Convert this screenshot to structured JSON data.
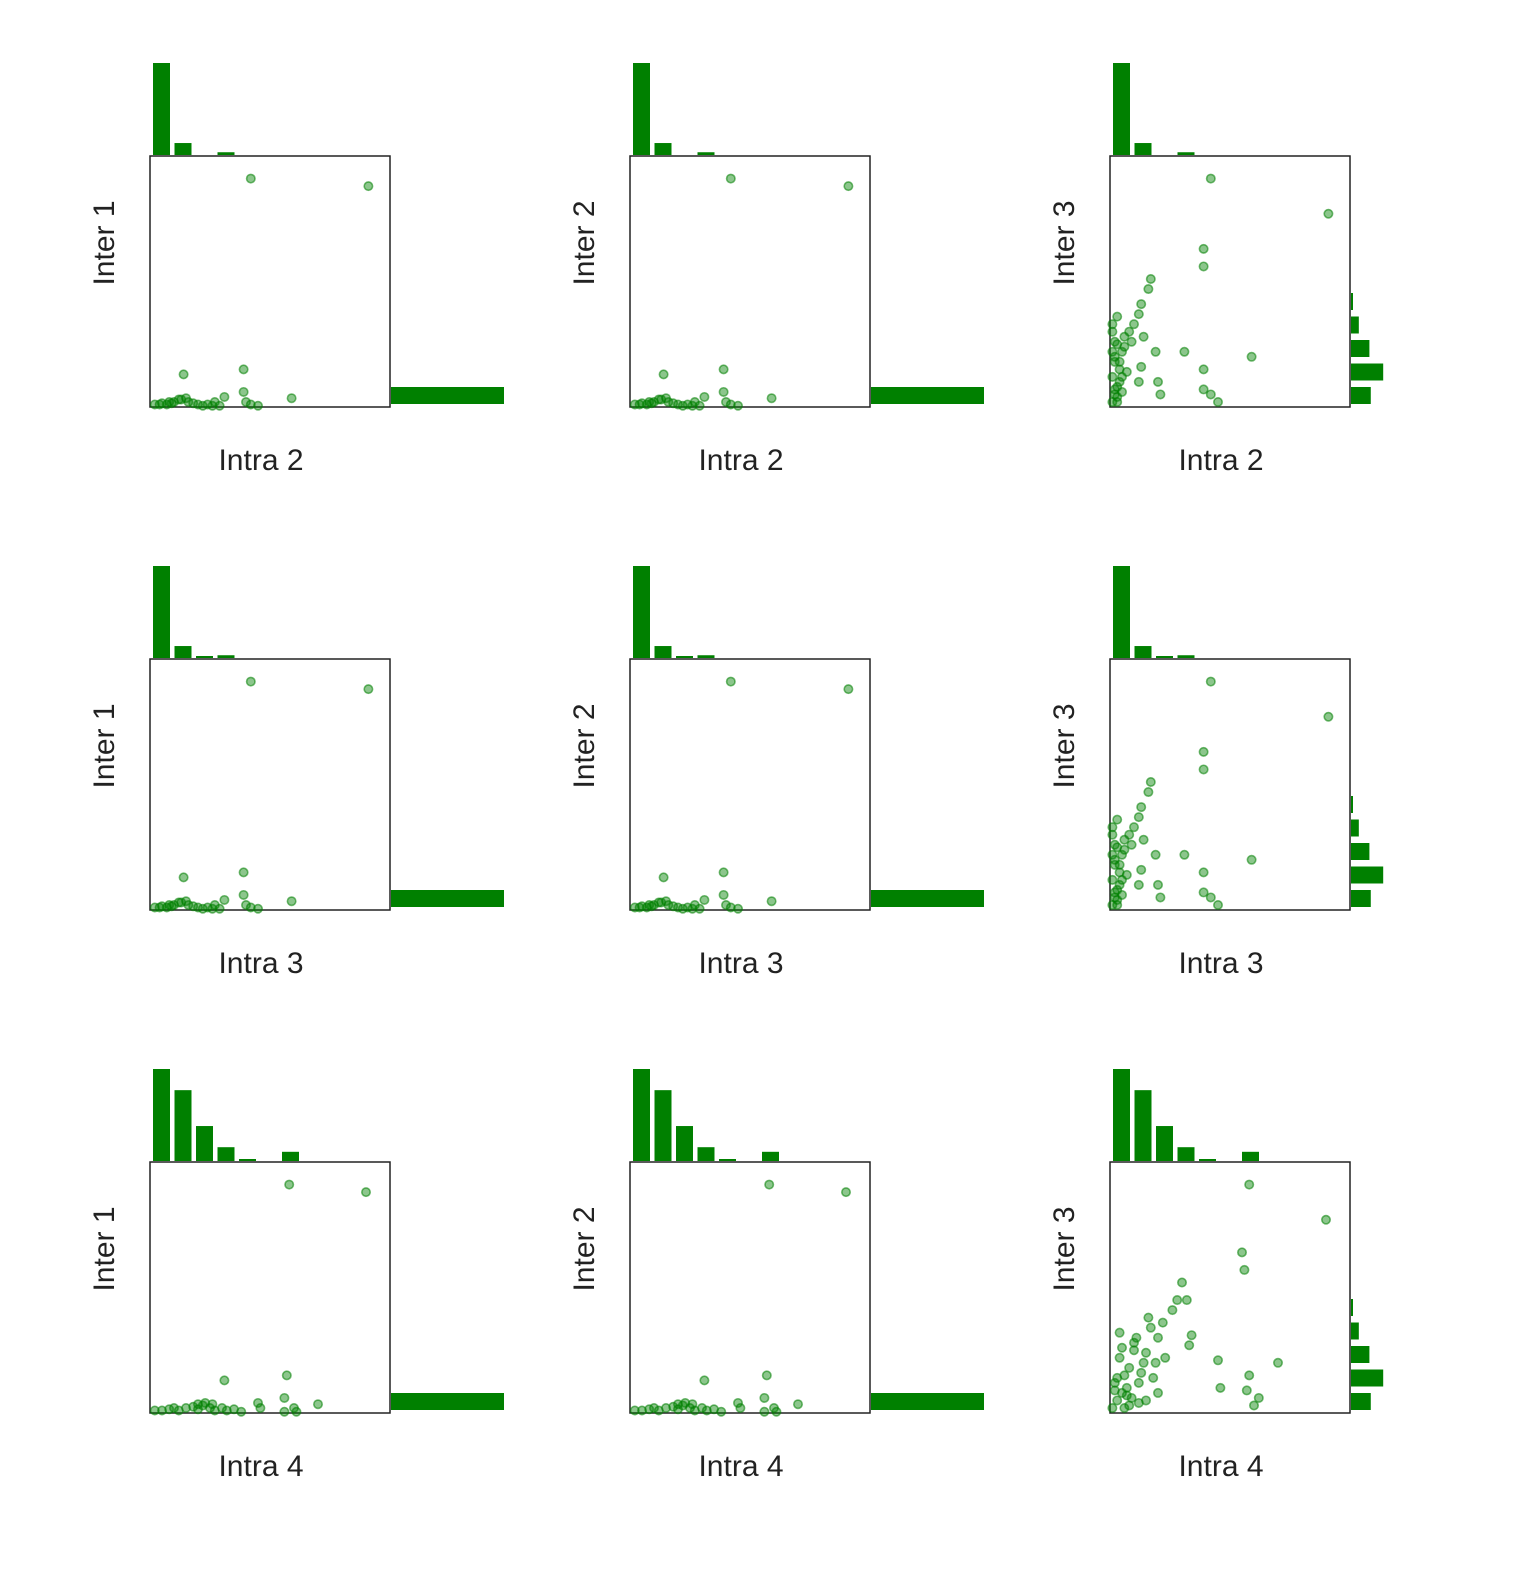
{
  "colors": {
    "marker": "#008000",
    "bar": "#008000",
    "axis": "#222222"
  },
  "chart_data": [
    {
      "type": "scatter",
      "xlabel": "Intra 2",
      "ylabel": "Inter 1",
      "xlim": [
        0,
        1
      ],
      "ylim": [
        0,
        1
      ],
      "x": [
        0.02,
        0.04,
        0.05,
        0.07,
        0.08,
        0.09,
        0.1,
        0.12,
        0.13,
        0.15,
        0.16,
        0.18,
        0.2,
        0.22,
        0.24,
        0.26,
        0.14,
        0.27,
        0.31,
        0.29,
        0.39,
        0.39,
        0.4,
        0.42,
        0.45,
        0.59,
        0.42,
        0.91
      ],
      "y": [
        0.01,
        0.01,
        0.015,
        0.01,
        0.02,
        0.015,
        0.02,
        0.03,
        0.03,
        0.035,
        0.02,
        0.015,
        0.01,
        0.005,
        0.01,
        0.005,
        0.13,
        0.02,
        0.04,
        0.005,
        0.15,
        0.06,
        0.02,
        0.01,
        0.005,
        0.035,
        0.91,
        0.88
      ],
      "top_hist": [
        1.0,
        0.13,
        0,
        0.03,
        0,
        0,
        0,
        0,
        0,
        0,
        0
      ],
      "right_hist": [
        1.0,
        0,
        0,
        0,
        0,
        0,
        0,
        0,
        0,
        0,
        0,
        0,
        0
      ]
    },
    {
      "type": "scatter",
      "xlabel": "Intra 2",
      "ylabel": "Inter 2",
      "xlim": [
        0,
        1
      ],
      "ylim": [
        0,
        1
      ],
      "x": [
        0.02,
        0.04,
        0.05,
        0.07,
        0.08,
        0.09,
        0.1,
        0.12,
        0.13,
        0.15,
        0.16,
        0.18,
        0.2,
        0.22,
        0.24,
        0.26,
        0.14,
        0.27,
        0.31,
        0.29,
        0.39,
        0.39,
        0.4,
        0.42,
        0.45,
        0.59,
        0.42,
        0.91
      ],
      "y": [
        0.01,
        0.01,
        0.015,
        0.01,
        0.02,
        0.015,
        0.02,
        0.03,
        0.03,
        0.035,
        0.02,
        0.015,
        0.01,
        0.005,
        0.01,
        0.005,
        0.13,
        0.02,
        0.04,
        0.005,
        0.15,
        0.06,
        0.02,
        0.01,
        0.005,
        0.035,
        0.91,
        0.88
      ],
      "top_hist": [
        1.0,
        0.13,
        0,
        0.03,
        0,
        0,
        0,
        0,
        0,
        0,
        0
      ],
      "right_hist": [
        1.0,
        0,
        0,
        0,
        0,
        0,
        0,
        0,
        0,
        0,
        0,
        0,
        0
      ]
    },
    {
      "type": "scatter",
      "xlabel": "Intra 2",
      "ylabel": "Inter 3",
      "xlim": [
        0,
        1
      ],
      "ylim": [
        0,
        1
      ],
      "x": [
        0.01,
        0.02,
        0.03,
        0.01,
        0.04,
        0.02,
        0.05,
        0.03,
        0.06,
        0.01,
        0.02,
        0.04,
        0.03,
        0.05,
        0.07,
        0.02,
        0.01,
        0.03,
        0.06,
        0.04,
        0.02,
        0.08,
        0.05,
        0.03,
        0.01,
        0.09,
        0.1,
        0.12,
        0.13,
        0.16,
        0.17,
        0.14,
        0.19,
        0.2,
        0.21,
        0.31,
        0.12,
        0.13,
        0.39,
        0.39,
        0.42,
        0.45,
        0.59,
        0.39,
        0.39,
        0.42,
        0.91
      ],
      "y": [
        0.02,
        0.05,
        0.08,
        0.12,
        0.15,
        0.18,
        0.22,
        0.25,
        0.28,
        0.3,
        0.2,
        0.1,
        0.04,
        0.06,
        0.14,
        0.26,
        0.33,
        0.36,
        0.24,
        0.18,
        0.07,
        0.3,
        0.12,
        0.02,
        0.22,
        0.26,
        0.33,
        0.37,
        0.41,
        0.47,
        0.51,
        0.28,
        0.22,
        0.1,
        0.05,
        0.22,
        0.1,
        0.16,
        0.07,
        0.15,
        0.05,
        0.02,
        0.2,
        0.56,
        0.63,
        0.91,
        0.77
      ],
      "top_hist": [
        1.0,
        0.13,
        0,
        0.03,
        0,
        0,
        0,
        0,
        0,
        0,
        0
      ],
      "right_hist": [
        0.43,
        0.7,
        0.4,
        0.17,
        0.04,
        0,
        0,
        0,
        0,
        0,
        0,
        0,
        0
      ]
    },
    {
      "type": "scatter",
      "xlabel": "Intra 3",
      "ylabel": "Inter 1",
      "xlim": [
        0,
        1
      ],
      "ylim": [
        0,
        1
      ],
      "x": [
        0.02,
        0.04,
        0.05,
        0.07,
        0.08,
        0.09,
        0.1,
        0.12,
        0.13,
        0.15,
        0.16,
        0.18,
        0.2,
        0.22,
        0.24,
        0.26,
        0.14,
        0.27,
        0.31,
        0.29,
        0.39,
        0.39,
        0.4,
        0.42,
        0.45,
        0.59,
        0.42,
        0.91
      ],
      "y": [
        0.01,
        0.01,
        0.015,
        0.01,
        0.02,
        0.015,
        0.02,
        0.03,
        0.03,
        0.035,
        0.02,
        0.015,
        0.01,
        0.005,
        0.01,
        0.005,
        0.13,
        0.02,
        0.04,
        0.005,
        0.15,
        0.06,
        0.02,
        0.01,
        0.005,
        0.035,
        0.91,
        0.88
      ],
      "top_hist": [
        1.0,
        0.13,
        0.01,
        0.03,
        0,
        0,
        0,
        0,
        0,
        0,
        0
      ],
      "right_hist": [
        1.0,
        0,
        0,
        0,
        0,
        0,
        0,
        0,
        0,
        0,
        0,
        0,
        0
      ]
    },
    {
      "type": "scatter",
      "xlabel": "Intra 3",
      "ylabel": "Inter 2",
      "xlim": [
        0,
        1
      ],
      "ylim": [
        0,
        1
      ],
      "x": [
        0.02,
        0.04,
        0.05,
        0.07,
        0.08,
        0.09,
        0.1,
        0.12,
        0.13,
        0.15,
        0.16,
        0.18,
        0.2,
        0.22,
        0.24,
        0.26,
        0.14,
        0.27,
        0.31,
        0.29,
        0.39,
        0.39,
        0.4,
        0.42,
        0.45,
        0.59,
        0.42,
        0.91
      ],
      "y": [
        0.01,
        0.01,
        0.015,
        0.01,
        0.02,
        0.015,
        0.02,
        0.03,
        0.03,
        0.035,
        0.02,
        0.015,
        0.01,
        0.005,
        0.01,
        0.005,
        0.13,
        0.02,
        0.04,
        0.005,
        0.15,
        0.06,
        0.02,
        0.01,
        0.005,
        0.035,
        0.91,
        0.88
      ],
      "top_hist": [
        1.0,
        0.13,
        0.01,
        0.03,
        0,
        0,
        0,
        0,
        0,
        0,
        0
      ],
      "right_hist": [
        1.0,
        0,
        0,
        0,
        0,
        0,
        0,
        0,
        0,
        0,
        0,
        0,
        0
      ]
    },
    {
      "type": "scatter",
      "xlabel": "Intra 3",
      "ylabel": "Inter 3",
      "xlim": [
        0,
        1
      ],
      "ylim": [
        0,
        1
      ],
      "x": [
        0.01,
        0.02,
        0.03,
        0.01,
        0.04,
        0.02,
        0.05,
        0.03,
        0.06,
        0.01,
        0.02,
        0.04,
        0.03,
        0.05,
        0.07,
        0.02,
        0.01,
        0.03,
        0.06,
        0.04,
        0.02,
        0.08,
        0.05,
        0.03,
        0.01,
        0.09,
        0.1,
        0.12,
        0.13,
        0.16,
        0.17,
        0.14,
        0.19,
        0.2,
        0.21,
        0.31,
        0.12,
        0.13,
        0.39,
        0.39,
        0.42,
        0.45,
        0.59,
        0.39,
        0.39,
        0.42,
        0.91
      ],
      "y": [
        0.02,
        0.05,
        0.08,
        0.12,
        0.15,
        0.18,
        0.22,
        0.25,
        0.28,
        0.3,
        0.2,
        0.1,
        0.04,
        0.06,
        0.14,
        0.26,
        0.33,
        0.36,
        0.24,
        0.18,
        0.07,
        0.3,
        0.12,
        0.02,
        0.22,
        0.26,
        0.33,
        0.37,
        0.41,
        0.47,
        0.51,
        0.28,
        0.22,
        0.1,
        0.05,
        0.22,
        0.1,
        0.16,
        0.07,
        0.15,
        0.05,
        0.02,
        0.2,
        0.56,
        0.63,
        0.91,
        0.77
      ],
      "top_hist": [
        1.0,
        0.13,
        0.01,
        0.03,
        0,
        0,
        0,
        0,
        0,
        0,
        0
      ],
      "right_hist": [
        0.43,
        0.7,
        0.4,
        0.17,
        0.04,
        0,
        0,
        0,
        0,
        0,
        0,
        0,
        0
      ]
    },
    {
      "type": "scatter",
      "xlabel": "Intra 4",
      "ylabel": "Inter 1",
      "xlim": [
        0,
        1
      ],
      "ylim": [
        0,
        1
      ],
      "x": [
        0.02,
        0.05,
        0.08,
        0.1,
        0.12,
        0.15,
        0.18,
        0.2,
        0.22,
        0.25,
        0.27,
        0.3,
        0.32,
        0.35,
        0.38,
        0.2,
        0.23,
        0.26,
        0.31,
        0.46,
        0.45,
        0.57,
        0.56,
        0.6,
        0.61,
        0.7,
        0.56,
        0.58,
        0.9
      ],
      "y": [
        0.01,
        0.01,
        0.015,
        0.02,
        0.01,
        0.02,
        0.025,
        0.015,
        0.03,
        0.02,
        0.01,
        0.02,
        0.01,
        0.015,
        0.005,
        0.035,
        0.04,
        0.035,
        0.13,
        0.02,
        0.04,
        0.15,
        0.06,
        0.02,
        0.005,
        0.035,
        0.005,
        0.91,
        0.88
      ],
      "top_hist": [
        1.0,
        0.77,
        0.38,
        0.15,
        0.02,
        0,
        0.1,
        0,
        0,
        0,
        0
      ],
      "right_hist": [
        1.0,
        0,
        0,
        0,
        0,
        0,
        0,
        0,
        0,
        0,
        0,
        0,
        0
      ]
    },
    {
      "type": "scatter",
      "xlabel": "Intra 4",
      "ylabel": "Inter 2",
      "xlim": [
        0,
        1
      ],
      "ylim": [
        0,
        1
      ],
      "x": [
        0.02,
        0.05,
        0.08,
        0.1,
        0.12,
        0.15,
        0.18,
        0.2,
        0.22,
        0.25,
        0.27,
        0.3,
        0.32,
        0.35,
        0.38,
        0.2,
        0.23,
        0.26,
        0.31,
        0.46,
        0.45,
        0.57,
        0.56,
        0.6,
        0.61,
        0.7,
        0.56,
        0.58,
        0.9
      ],
      "y": [
        0.01,
        0.01,
        0.015,
        0.02,
        0.01,
        0.02,
        0.025,
        0.015,
        0.03,
        0.02,
        0.01,
        0.02,
        0.01,
        0.015,
        0.005,
        0.035,
        0.04,
        0.035,
        0.13,
        0.02,
        0.04,
        0.15,
        0.06,
        0.02,
        0.005,
        0.035,
        0.005,
        0.91,
        0.88
      ],
      "top_hist": [
        1.0,
        0.77,
        0.38,
        0.15,
        0.02,
        0,
        0.1,
        0,
        0,
        0,
        0
      ],
      "right_hist": [
        1.0,
        0,
        0,
        0,
        0,
        0,
        0,
        0,
        0,
        0,
        0,
        0,
        0
      ]
    },
    {
      "type": "scatter",
      "xlabel": "Intra 4",
      "ylabel": "Inter 3",
      "xlim": [
        0,
        1
      ],
      "ylim": [
        0,
        1
      ],
      "x": [
        0.01,
        0.03,
        0.05,
        0.02,
        0.06,
        0.08,
        0.04,
        0.1,
        0.07,
        0.12,
        0.09,
        0.03,
        0.05,
        0.11,
        0.14,
        0.06,
        0.02,
        0.08,
        0.13,
        0.15,
        0.1,
        0.04,
        0.17,
        0.19,
        0.07,
        0.12,
        0.15,
        0.2,
        0.22,
        0.26,
        0.28,
        0.3,
        0.32,
        0.33,
        0.2,
        0.18,
        0.23,
        0.16,
        0.34,
        0.46,
        0.45,
        0.58,
        0.57,
        0.6,
        0.62,
        0.7,
        0.56,
        0.55,
        0.58,
        0.9
      ],
      "y": [
        0.02,
        0.05,
        0.08,
        0.12,
        0.15,
        0.18,
        0.22,
        0.25,
        0.1,
        0.04,
        0.06,
        0.14,
        0.26,
        0.3,
        0.2,
        0.02,
        0.09,
        0.03,
        0.16,
        0.24,
        0.28,
        0.32,
        0.34,
        0.2,
        0.07,
        0.12,
        0.05,
        0.3,
        0.36,
        0.41,
        0.45,
        0.52,
        0.45,
        0.27,
        0.08,
        0.14,
        0.22,
        0.38,
        0.31,
        0.1,
        0.21,
        0.15,
        0.09,
        0.03,
        0.06,
        0.2,
        0.57,
        0.64,
        0.91,
        0.77
      ],
      "top_hist": [
        1.0,
        0.77,
        0.38,
        0.15,
        0.02,
        0,
        0.1,
        0,
        0,
        0,
        0
      ],
      "right_hist": [
        0.43,
        0.7,
        0.4,
        0.17,
        0.04,
        0,
        0,
        0,
        0,
        0,
        0,
        0,
        0
      ]
    }
  ]
}
